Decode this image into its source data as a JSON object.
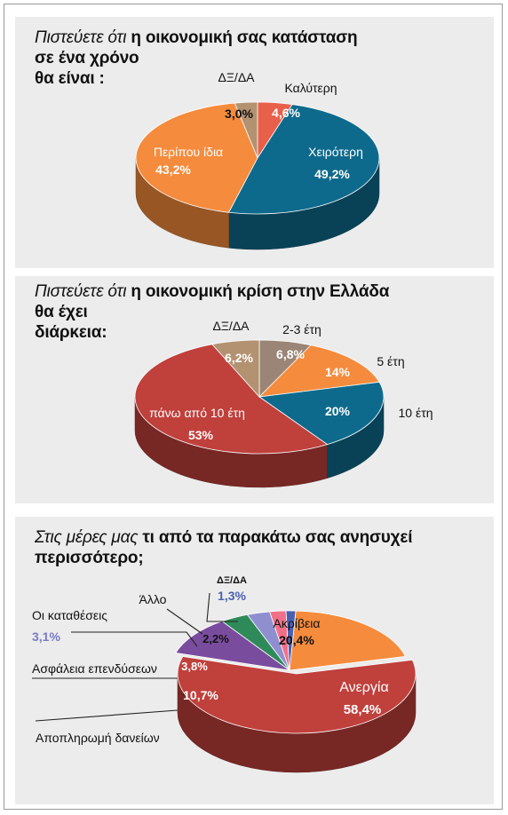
{
  "chart_data": [
    {
      "type": "pie",
      "title_italic": "Πιστεύετε ότι",
      "title_bold": "η οικονομική σας κατάσταση",
      "title_line2": "σε ένα χρόνο",
      "title_line3": "θα είναι :",
      "slices": [
        {
          "label": "Καλύτερη",
          "value": 4.6,
          "value_text": "4,6%",
          "color": "#e8604a"
        },
        {
          "label": "Χειρότερη",
          "value": 49.2,
          "value_text": "49,2%",
          "color": "#0e6a8c"
        },
        {
          "label": "Περίπου ίδια",
          "value": 43.2,
          "value_text": "43,2%",
          "color": "#f58b3c"
        },
        {
          "label": "ΔΞ/ΔΑ",
          "value": 3.0,
          "value_text": "3,0%",
          "color": "#b39272"
        }
      ]
    },
    {
      "type": "pie",
      "title_italic": "Πιστεύετε ότι",
      "title_bold": "η οικονομική κρίση στην Ελλάδα",
      "title_line2": "θα έχει",
      "title_line3": "διάρκεια:",
      "slices": [
        {
          "label": "2-3 έτη",
          "value": 6.8,
          "value_text": "6,8%",
          "color": "#9a8576"
        },
        {
          "label": "5 έτη",
          "value": 14,
          "value_text": "14%",
          "color": "#f58b3c"
        },
        {
          "label": "10 έτη",
          "value": 20,
          "value_text": "20%",
          "color": "#0e6a8c"
        },
        {
          "label": "πάνω από 10 έτη",
          "value": 53,
          "value_text": "53%",
          "color": "#c0403c"
        },
        {
          "label": "ΔΞ/ΔΑ",
          "value": 6.2,
          "value_text": "6,2%",
          "color": "#b39272"
        }
      ]
    },
    {
      "type": "pie",
      "title_italic": "Στις μέρες μας",
      "title_bold": "τι από τα παρακάτω σας ανησυχεί",
      "title_line2": "περισσότερο;",
      "slices": [
        {
          "label": "Ακρίβεια",
          "value": 20.4,
          "value_text": "20,4%",
          "color": "#f58b3c"
        },
        {
          "label": "Ανεργία",
          "value": 58.4,
          "value_text": "58,4%",
          "color": "#c0403c"
        },
        {
          "label": "Αποπληρωμή δανείων",
          "value": 10.7,
          "value_text": "10,7%",
          "color": "#7a4c9e"
        },
        {
          "label": "Ασφάλεια επενδύσεων",
          "value": 3.8,
          "value_text": "3,8%",
          "color": "#2f8a5a"
        },
        {
          "label": "Οι καταθέσεις",
          "value": 3.1,
          "value_text": "3,1%",
          "color": "#8f8fd0"
        },
        {
          "label": "Άλλο",
          "value": 2.2,
          "value_text": "2,2%",
          "color": "#f07088"
        },
        {
          "label": "ΔΞ/ΔΑ",
          "value": 1.3,
          "value_text": "1,3%",
          "color": "#4a5fb0"
        }
      ]
    }
  ]
}
